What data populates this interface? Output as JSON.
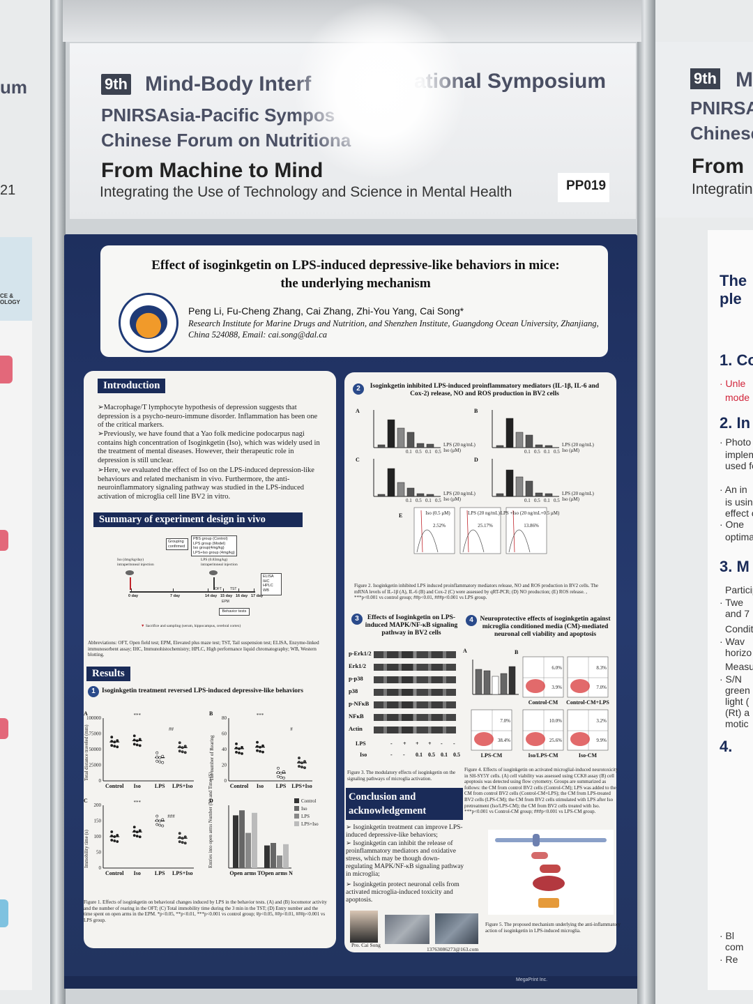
{
  "header": {
    "symposium_badge": "9th",
    "symposium_line1_left": "Mind-Body Interf",
    "symposium_line1_right": "ational Symposium",
    "symposium_line2": "PNIRSAsia-Pacific Sympos",
    "symposium_line3": "Chinese Forum on Nutritiona",
    "theme_title": "From Machine to Mind",
    "theme_subtitle": "Integrating the Use of Technology and Science in Mental Health",
    "poster_code": "PP019"
  },
  "neighbor_right": {
    "badge": "9th",
    "line1": "M",
    "line2": "PNIRSAs",
    "line3": "Chinese",
    "line4": "From",
    "line5": "Integratin",
    "poster_texts": [
      "The",
      "ple",
      "1. Co",
      "· Unle",
      "mode",
      "2. In",
      "· Photo",
      "implem",
      "used fo",
      "· An in",
      "is using",
      "effect o",
      "· One",
      "optima",
      "3. M",
      "Particip",
      "· Twe",
      "and 7",
      "Conditi",
      "· Wav",
      "horizo",
      "Measur",
      "· S/N",
      "green",
      "light (",
      "(Rt) a",
      "motic",
      "4.",
      "· Bl",
      "com",
      "· Re"
    ]
  },
  "neighbor_left": {
    "line1": "um",
    "line2": "21",
    "logo_text": "CE & OLOGY"
  },
  "poster": {
    "title_line1": "Effect of isoginkgetin on LPS-induced depressive-like behaviors in mice:",
    "title_line2": "the underlying mechanism",
    "authors": "Peng Li, Fu-Cheng Zhang, Cai Zhang, Zhi-You Yang, Cai Song*",
    "affiliation": "Research Institute for Marine Drugs and Nutrition, and Shenzhen Institute, Guangdong Ocean University, Zhanjiang, China 524088, Email: cai.song@dal.ca",
    "introduction": {
      "heading": "Introduction",
      "p1": "➢Macrophage/T lymphocyte hypothesis of depression suggests that depression is a psycho-neuro-immune disorder. Inflammation has been one of the critical markers.",
      "p2": "➢Previously, we have found that a Yao folk medicine podocarpus nagi contains high concentration of Isoginkgetin (Iso), which was widely used in the treatment of mental diseases. However, their therapeutic role in depression is still unclear.",
      "p3": "➢Here, we evaluated the effect of Iso on the LPS-induced depression-like behaviours and related mechanism in vivo. Furthermore, the anti-neuroinflammatory signaling pathway was studied in the LPS-induced activation of microglia cell line BV2 in vitro."
    },
    "design": {
      "heading": "Summary of experiment design in vivo",
      "groups_label": "Grouping confirmed",
      "groups": "PBS group (Control)\nLPS group (Model)\nIso group(4mg/kg)\nLPS+Iso group (4mg/kg)",
      "iso_label": "Iso (4mg/kg/day) intraperitoneal injection",
      "lps_label": "LPS (0.83mg/kg) intraperitoneal injection",
      "days": [
        "0 day",
        "7 day",
        "14 day",
        "15 day",
        "16 day",
        "17 day"
      ],
      "tests": [
        "OFT",
        "TST",
        "EPM"
      ],
      "assays": "ELISA\nIHC\nHPLC\nWB",
      "behavior_label": "Behavior tests",
      "sacrifice": "Sacrifice and sampling (serum, hippocampus, cerebral cortex)",
      "abbreviations": "Abbreviations: OFT, Open field test; EPM, Elevated plus maze test; TST, Tail suspension test; ELISA, Enzyme-linked immunosorbent assay; IHC, Immunohistochemistry; HPLC, High performance liquid chromatography; WB, Western blotting."
    },
    "results": {
      "heading": "Results",
      "r1_num": "1",
      "r1_title": "Isoginkgetin treatment reversed LPS-induced depressive-like behaviors",
      "fig1_caption": "Figure 1. Effects of isoginkgetin on behavioral changes induced by LPS in the behavior tests. (A) and (B) locomotor activity and the number of rearing in the OFT; (C) Total immobility time during the 3 min in the TST; (D) Entry number and the time spent on open arms in the EPM. *p<0.05, **p<0.01, ***p<0.001 vs control group; #p<0.05, ##p<0.01, ###p<0.001 vs LPS group.",
      "fig1a_ylabel": "Total distance traveled (mm)",
      "fig1b_ylabel": "The number of Rearing",
      "fig1c_ylabel": "Immobility time (s)",
      "fig1d_ylabel": "Entries into open arms Number (N) and Time (S)",
      "groups": [
        "Control",
        "Iso",
        "LPS",
        "LPS+Iso"
      ],
      "epm_groups": [
        "Open arms T",
        "Open arms N"
      ],
      "panel_letters": [
        "A",
        "B",
        "C",
        "D"
      ],
      "sig_marks": [
        "***",
        "##",
        "***",
        "#",
        "***",
        "###"
      ]
    },
    "r2": {
      "num": "2",
      "title": "Isoginkgetin inhibited LPS-induced proinflammatory mediators (IL-1β, IL-6 and Cox-2) release, NO and ROS production in BV2 cells",
      "panel_letters": [
        "A",
        "B",
        "C",
        "D",
        "E"
      ],
      "lps_label": "LPS (20 ng/mL)",
      "iso_label": "Iso (μM)",
      "doses": [
        "0.1",
        "0.5",
        "0.1",
        "0.5"
      ],
      "flow_labels": [
        "Iso (0.5 μM)",
        "LPS (20 ng/mL)",
        "LPS +Iso (20 ng/mL+0.5 μM)"
      ],
      "flow_values": [
        "2.52%",
        "25.17%",
        "13.86%"
      ],
      "caption": "Figure 2. Isoginkgetin inhibited LPS induced proinflammatory mediators release, NO and ROS production in BV2 cells. The mRNA levels of IL-1β (A), IL-6 (B) and Cox-2 (C) were assessed by qRT-PCR; (D) NO production; (E) ROS release. , ***p<0.001 vs control group; ##p<0.01, ###p<0.001 vs LPS group."
    },
    "r3": {
      "num": "3",
      "title": "Effects of Isoginkgetin on LPS-induced MAPK/NF-κB signaling pathway in BV2 cells",
      "bands": [
        "p-Erk1/2",
        "Erk1/2",
        "p-p38",
        "p38",
        "p-NFκB",
        "NFκB",
        "Actin"
      ],
      "lps_row": [
        "LPS",
        "-",
        "+",
        "+",
        "+",
        "-",
        "-"
      ],
      "iso_row": [
        "Iso",
        "-",
        "-",
        "0.1",
        "0.5",
        "0.1",
        "0.5"
      ],
      "caption": "Figure 3. The modulatory effects of isoginkgetin on the signaling pathways of microglia activation."
    },
    "r4": {
      "num": "4",
      "title": "Neuroprotective effects of isoginkgetin against microglia conditioned media (CM)-mediated neuronal cell viability and apoptosis",
      "panel_letters": [
        "A",
        "B"
      ],
      "flow_panels": [
        {
          "label": "Control-CM",
          "q1": "6.0%",
          "q2": "3.9%"
        },
        {
          "label": "Control-CM+LPS",
          "q1": "8.3%",
          "q2": "7.0%"
        },
        {
          "label": "LPS-CM",
          "q1": "7.0%",
          "q2": "38.4%"
        },
        {
          "label": "Iso/LPS-CM",
          "q1": "10.0%",
          "q2": "25.6%"
        },
        {
          "label": "Iso-CM",
          "q1": "3.2%",
          "q2": "9.9%"
        }
      ],
      "caption": "Figure 4. Effects of isoginkgetin on activated microglial-induced neurotoxicity in SH-SY5Y cells. (A) cell viability was assessed using CCK8 assay (B) cell apoptosis was detected using flow cytometry. Groups are summarized as follows: the CM from control BV2 cells (Control-CM); LPS was added to the CM from control BV2 cells (Control-CM+LPS); the CM from LPS-treated BV2 cells (LPS-CM); the CM from BV2 cells stimulated with LPS after Iso pretreatment (Iso/LPS-CM); the CM from BV2 cells treated with Iso. ***p<0.001 vs Control-CM group; ###p<0.001 vs LPS-CM group.",
      "fig5_caption": "Figure 5. The proposed mechanism underlying the anti-inflammatory action of isoginkgetin in LPS-induced microglia."
    },
    "conclusion": {
      "heading_line1": "Conclusion and",
      "heading_line2": "acknowledgement",
      "c1": "➢ Isoginkgetin treatment can improve LPS-induced depressive-like behaviors;",
      "c2": "➢ Isoginkgetin can inhibit the release of proinflammatory mediators and oxidative stress, which may be though down-regulating MAPK/NF-κB signaling pathway in microglia;",
      "c3": "➢ Isoginkgetin protect neuronal cells from activated microglia-induced toxicity and apoptosis.",
      "photo_caption": "Pro. Cai Song",
      "contact": "13763086273@163.com"
    },
    "footer": "MegaPrint Inc."
  },
  "chart_data": [
    {
      "type": "scatter",
      "panel": "1A",
      "categories": [
        "Control",
        "Iso",
        "LPS",
        "LPS+Iso"
      ],
      "ylabel": "Total distance traveled (mm)",
      "ylim": [
        0,
        100000
      ],
      "means": [
        62000,
        64000,
        37000,
        53000
      ]
    },
    {
      "type": "scatter",
      "panel": "1B",
      "categories": [
        "Control",
        "Iso",
        "LPS",
        "LPS+Iso"
      ],
      "ylabel": "The number of Rearing",
      "ylim": [
        0,
        80
      ],
      "means": [
        41,
        43,
        10,
        23
      ]
    },
    {
      "type": "scatter",
      "panel": "1C",
      "categories": [
        "Control",
        "Iso",
        "LPS",
        "LPS+Iso"
      ],
      "ylabel": "Immobility time (s)",
      "ylim": [
        0,
        200
      ],
      "means": [
        100,
        115,
        150,
        95
      ]
    },
    {
      "type": "bar",
      "panel": "1D",
      "categories": [
        "Open arms T",
        "Open arms N"
      ],
      "ylabel": "Entries into open arms Number (N) and Time (S)",
      "series": [
        {
          "name": "Control",
          "values": [
            42,
            18
          ]
        },
        {
          "name": "Iso",
          "values": [
            46,
            20
          ]
        },
        {
          "name": "LPS",
          "values": [
            28,
            10
          ]
        },
        {
          "name": "LPS+Iso",
          "values": [
            44,
            19
          ]
        }
      ]
    }
  ]
}
